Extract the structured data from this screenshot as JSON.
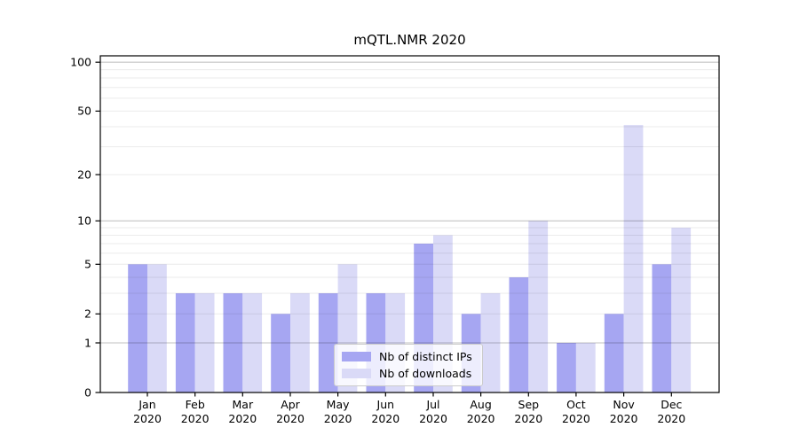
{
  "chart_data": {
    "type": "bar",
    "title": "mQTL.NMR 2020",
    "categories": [
      "Jan",
      "Feb",
      "Mar",
      "Apr",
      "May",
      "Jun",
      "Jul",
      "Aug",
      "Sep",
      "Oct",
      "Nov",
      "Dec"
    ],
    "category_year": "2020",
    "series": [
      {
        "name": "Nb of distinct IPs",
        "color": "#a6a6f2",
        "values": [
          5,
          3,
          3,
          2,
          3,
          3,
          7,
          2,
          4,
          1,
          2,
          5
        ]
      },
      {
        "name": "Nb of downloads",
        "color": "#dadaf7",
        "values": [
          5,
          3,
          3,
          3,
          5,
          3,
          8,
          3,
          10,
          1,
          41,
          9
        ]
      }
    ],
    "yscale": "log1p",
    "yticks": [
      0,
      1,
      2,
      5,
      10,
      20,
      50,
      100
    ],
    "ylim": [
      0,
      110
    ],
    "xlabel": "",
    "ylabel": "",
    "grid": true,
    "legend_position": "inside-bottom-center"
  },
  "style_colors": {
    "axis": "#000000",
    "major_grid_rgba": "rgba(0,0,0,0.24)",
    "minor_grid_rgba": "rgba(0,0,0,0.08)",
    "background": "#ffffff"
  }
}
